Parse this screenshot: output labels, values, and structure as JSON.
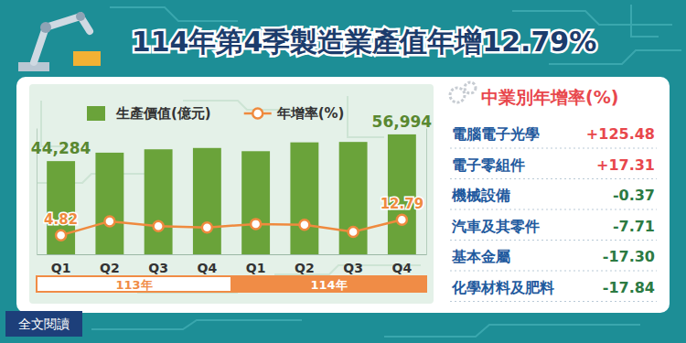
{
  "title": "114年第4季製造業產值年增12.79%",
  "chart_data": {
    "type": "bar",
    "categories": [
      "Q1",
      "Q2",
      "Q3",
      "Q4",
      "Q1",
      "Q2",
      "Q3",
      "Q4"
    ],
    "category_groups": [
      "113年",
      "113年",
      "113年",
      "113年",
      "114年",
      "114年",
      "114年",
      "114年"
    ],
    "series": [
      {
        "name": "生產價值(億元)",
        "type": "bar",
        "color": "#6aa33a",
        "values": [
          44284,
          48300,
          49900,
          50530,
          49000,
          53200,
          53400,
          56994
        ],
        "value_labels": [
          "44,284",
          null,
          null,
          null,
          null,
          null,
          null,
          "56,994"
        ]
      },
      {
        "name": "年增率(%)",
        "type": "line",
        "axis": "y2",
        "color": "#ef8a3e",
        "marker": "circle",
        "values": [
          4.82,
          12.0,
          9.5,
          8.8,
          10.6,
          10.2,
          6.5,
          12.79
        ],
        "value_labels": [
          "4.82",
          null,
          null,
          null,
          null,
          null,
          null,
          "12.79"
        ]
      }
    ],
    "ylim": [
      0,
      60000
    ],
    "y2lim": [
      -5,
      60
    ],
    "legend": "top",
    "grid": false,
    "tick_labels": "x"
  },
  "industry_panel": {
    "title": "中業別年增率(%)",
    "rows": [
      {
        "name": "電腦電子光學",
        "value": 125.48,
        "label": "+125.48"
      },
      {
        "name": "電子零組件",
        "value": 17.31,
        "label": "+17.31"
      },
      {
        "name": "機械設備",
        "value": -0.37
      },
      {
        "name": "汽車及其零件",
        "value": -7.71
      },
      {
        "name": "基本金屬",
        "value": -17.3,
        "label": "-17.30"
      },
      {
        "name": "化學材料及肥料",
        "value": -17.84
      }
    ]
  },
  "button": "全文閱讀"
}
